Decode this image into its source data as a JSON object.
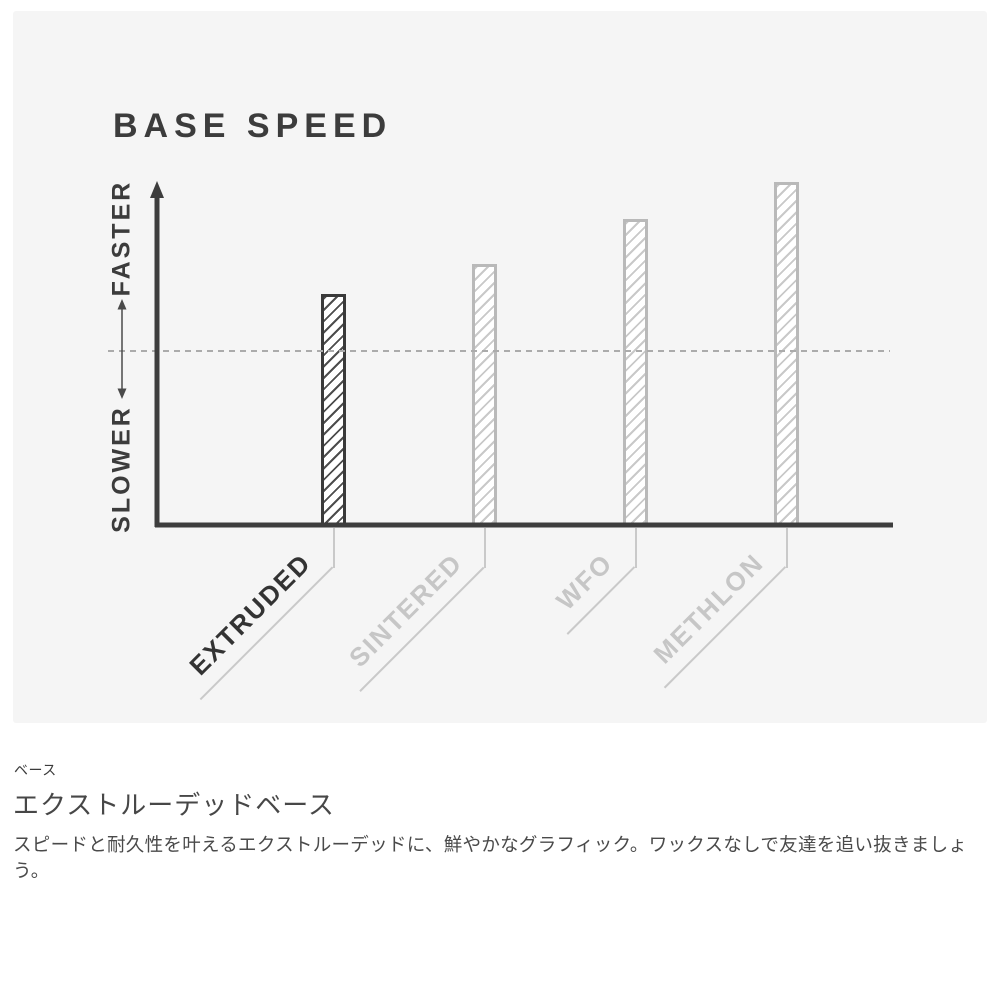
{
  "page": {
    "background": "#ffffff",
    "panel_background": "#f5f5f5"
  },
  "chart_data": {
    "type": "bar",
    "title": "BASE SPEED",
    "categories": [
      "EXTRUDED",
      "SINTERED",
      "WFO",
      "METHLON"
    ],
    "values": [
      68,
      77,
      90,
      101
    ],
    "ylim": [
      0,
      105
    ],
    "y_axis_label_top": "FASTER",
    "y_axis_label_bottom": "SLOWER",
    "reference_line_value": 51.5,
    "reference_line_style": "dashed",
    "grid": "off",
    "legend": "none",
    "bar_pattern": "diagonal-hatch",
    "highlight_index": 0,
    "colors": {
      "highlight_bar": "#3a3a3a",
      "highlight_hatch": "#4d4d4d",
      "highlight_label": "#333333",
      "muted_bar": "#b9b9b9",
      "muted_hatch": "#c9c9c9",
      "muted_label": "#c6c6c6",
      "axis": "#3d3d3d",
      "reference_line": "#ababab",
      "range_arrow": "#4a4a4a",
      "leader_line": "#c9c9c9"
    }
  },
  "footer": {
    "label": "ベース",
    "heading": "エクストルーデッドベース",
    "body": "スピードと耐久性を叶えるエクストルーデッドに、鮮やかなグラフィック。ワックスなしで友達を追い抜きましょう。"
  }
}
